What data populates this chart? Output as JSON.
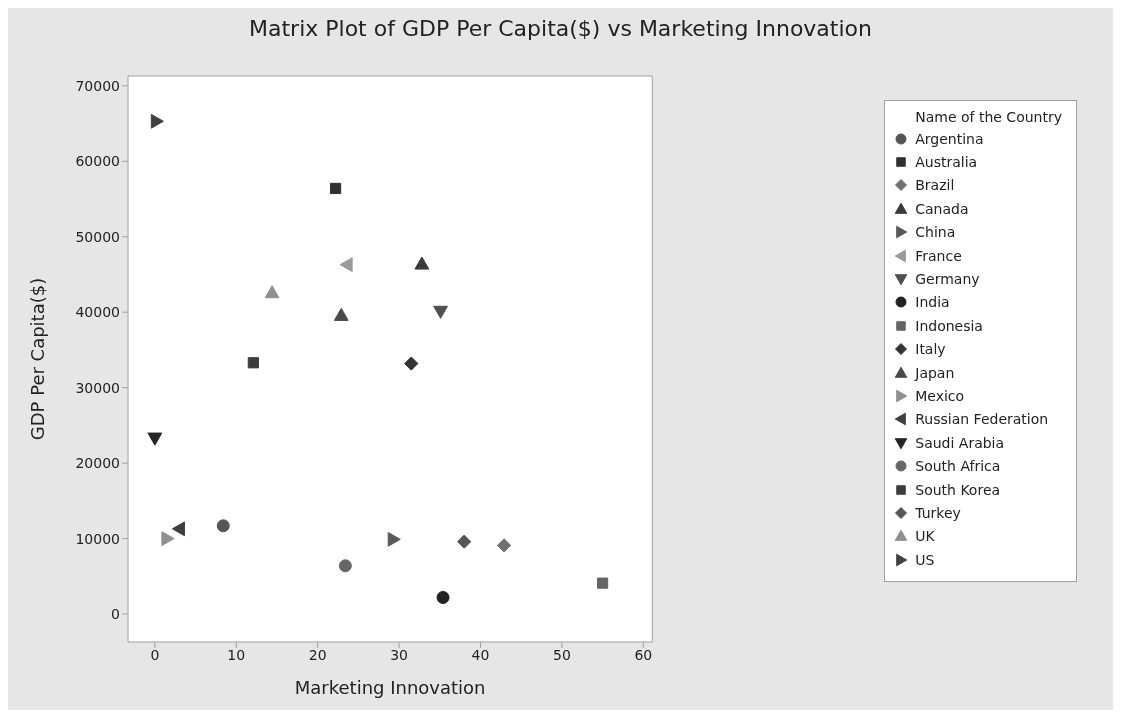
{
  "chart_data": {
    "type": "scatter",
    "title": "Matrix Plot of GDP Per Capita($) vs Marketing Innovation",
    "xlabel": "Marketing Innovation",
    "ylabel": "GDP Per Capita($)",
    "legend_title": "Name of the Country",
    "legend": "right",
    "grid": false,
    "xlim": [
      -3.3,
      61.1
    ],
    "xticks": [
      0,
      10,
      20,
      30,
      40,
      50,
      60
    ],
    "ylim": [
      -3700,
      71300
    ],
    "yticks": [
      0,
      10000,
      20000,
      30000,
      40000,
      50000,
      60000,
      70000
    ],
    "series": [
      {
        "name": "Argentina",
        "color": "#555555",
        "marker": "circle",
        "x": [
          8.4
        ],
        "values": [
          11700
        ]
      },
      {
        "name": "Australia",
        "color": "#303030",
        "marker": "square",
        "x": [
          22.2
        ],
        "values": [
          56400
        ]
      },
      {
        "name": "Brazil",
        "color": "#707070",
        "marker": "diamond",
        "x": [
          42.9
        ],
        "values": [
          9100
        ]
      },
      {
        "name": "Canada",
        "color": "#3a3a3a",
        "marker": "triangle",
        "x": [
          32.8
        ],
        "values": [
          46400
        ]
      },
      {
        "name": "China",
        "color": "#5a5a5a",
        "marker": "triangle-right",
        "x": [
          29.3
        ],
        "values": [
          9900
        ]
      },
      {
        "name": "France",
        "color": "#9a9a9a",
        "marker": "triangle-left",
        "x": [
          23.6
        ],
        "values": [
          46300
        ]
      },
      {
        "name": "Germany",
        "color": "#505050",
        "marker": "triangle-down",
        "x": [
          35.1
        ],
        "values": [
          40100
        ]
      },
      {
        "name": "India",
        "color": "#222222",
        "marker": "circle",
        "x": [
          35.4
        ],
        "values": [
          2200
        ]
      },
      {
        "name": "Indonesia",
        "color": "#656565",
        "marker": "square",
        "x": [
          55.0
        ],
        "values": [
          4100
        ]
      },
      {
        "name": "Italy",
        "color": "#333333",
        "marker": "diamond",
        "x": [
          31.5
        ],
        "values": [
          33200
        ]
      },
      {
        "name": "Japan",
        "color": "#4a4a4a",
        "marker": "triangle",
        "x": [
          22.9
        ],
        "values": [
          39600
        ]
      },
      {
        "name": "Mexico",
        "color": "#909090",
        "marker": "triangle-right",
        "x": [
          1.5
        ],
        "values": [
          10000
        ]
      },
      {
        "name": "Russian Federation",
        "color": "#3f3f3f",
        "marker": "triangle-left",
        "x": [
          3.0
        ],
        "values": [
          11300
        ]
      },
      {
        "name": "Saudi Arabia",
        "color": "#252525",
        "marker": "triangle-down",
        "x": [
          0.0
        ],
        "values": [
          23300
        ]
      },
      {
        "name": "South Africa",
        "color": "#666666",
        "marker": "circle",
        "x": [
          23.4
        ],
        "values": [
          6400
        ]
      },
      {
        "name": "South Korea",
        "color": "#3c3c3c",
        "marker": "square",
        "x": [
          12.1
        ],
        "values": [
          33300
        ]
      },
      {
        "name": "Turkey",
        "color": "#555555",
        "marker": "diamond",
        "x": [
          38.0
        ],
        "values": [
          9600
        ]
      },
      {
        "name": "UK",
        "color": "#8f8f8f",
        "marker": "triangle",
        "x": [
          14.4
        ],
        "values": [
          42600
        ]
      },
      {
        "name": "US",
        "color": "#404040",
        "marker": "triangle-right",
        "x": [
          0.2
        ],
        "values": [
          65300
        ]
      }
    ]
  }
}
